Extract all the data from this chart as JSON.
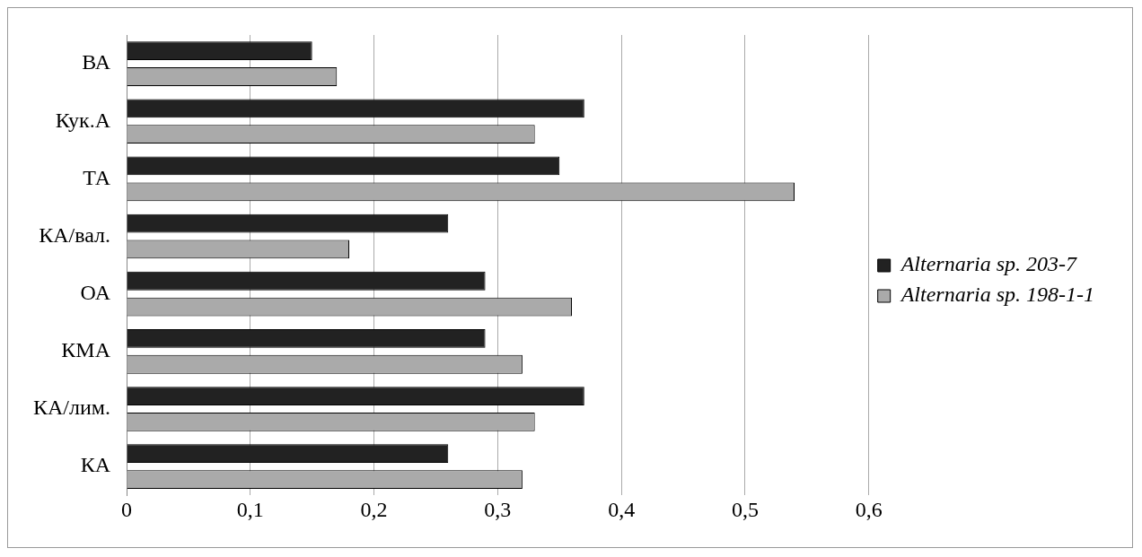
{
  "chart_data": {
    "type": "bar",
    "orientation": "horizontal",
    "categories": [
      "ВА",
      "Кук.А",
      "ТА",
      "КА/вал.",
      "ОА",
      "КМА",
      "КА/лим.",
      "КА"
    ],
    "series": [
      {
        "name": "Alternaria sp. 203-7",
        "color": "#222222",
        "values": [
          0.15,
          0.37,
          0.35,
          0.26,
          0.29,
          0.29,
          0.37,
          0.26
        ]
      },
      {
        "name": "Alternaria sp. 198-1-1",
        "color": "#aaaaaa",
        "values": [
          0.17,
          0.33,
          0.54,
          0.18,
          0.36,
          0.32,
          0.33,
          0.32
        ]
      }
    ],
    "xlim": [
      0,
      0.6
    ],
    "xticks": [
      0,
      {
        "value": 0.1,
        "label": "0,1"
      },
      {
        "value": 0.2,
        "label": "0,2"
      },
      {
        "value": 0.3,
        "label": "0,3"
      },
      {
        "value": 0.4,
        "label": "0,4"
      },
      {
        "value": 0.5,
        "label": "0,5"
      },
      {
        "value": 0.6,
        "label": "0,6"
      }
    ],
    "grid": "x",
    "legend": "right"
  }
}
